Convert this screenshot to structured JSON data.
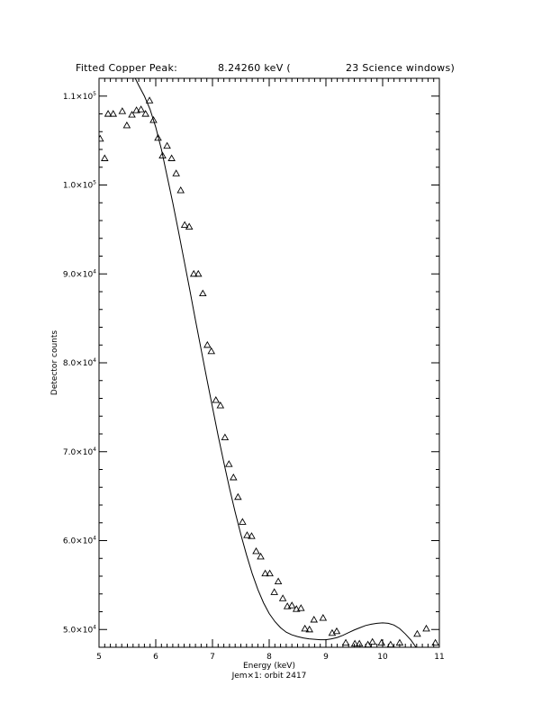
{
  "header": {
    "label": "Fitted Copper Peak:",
    "energy": "8.24260 keV (",
    "windows": "23 Science windows)"
  },
  "chart_data": {
    "type": "scatter",
    "xlabel": "Energy (keV)",
    "ylabel": "Detector counts",
    "subtitle": "Jem×1: orbit 2417",
    "xlim": [
      5,
      11
    ],
    "ylim": [
      48000,
      112000
    ],
    "x_ticks": [
      {
        "value": 5,
        "label": "5"
      },
      {
        "value": 6,
        "label": "6"
      },
      {
        "value": 7,
        "label": "7"
      },
      {
        "value": 8,
        "label": "8"
      },
      {
        "value": 9,
        "label": "9"
      },
      {
        "value": 10,
        "label": "10"
      },
      {
        "value": 11,
        "label": "11"
      }
    ],
    "y_ticks": [
      {
        "value": 50000,
        "mant": "5.0×10",
        "exp": "4"
      },
      {
        "value": 60000,
        "mant": "6.0×10",
        "exp": "4"
      },
      {
        "value": 70000,
        "mant": "7.0×10",
        "exp": "4"
      },
      {
        "value": 80000,
        "mant": "8.0×10",
        "exp": "4"
      },
      {
        "value": 90000,
        "mant": "9.0×10",
        "exp": "4"
      },
      {
        "value": 100000,
        "mant": "1.0×10",
        "exp": "5"
      },
      {
        "value": 110000,
        "mant": "1.1×10",
        "exp": "5"
      }
    ],
    "series": [
      {
        "marker": "triangle",
        "points": [
          [
            5.02,
            105200
          ],
          [
            5.1,
            103000
          ],
          [
            5.16,
            108000
          ],
          [
            5.25,
            108000
          ],
          [
            5.41,
            108300
          ],
          [
            5.49,
            106700
          ],
          [
            5.58,
            107900
          ],
          [
            5.66,
            108400
          ],
          [
            5.74,
            108500
          ],
          [
            5.82,
            108000
          ],
          [
            5.89,
            109500
          ],
          [
            5.96,
            107300
          ],
          [
            6.04,
            105300
          ],
          [
            6.12,
            103300
          ],
          [
            6.2,
            104400
          ],
          [
            6.28,
            103000
          ],
          [
            6.36,
            101300
          ],
          [
            6.44,
            99400
          ],
          [
            6.51,
            95500
          ],
          [
            6.59,
            95300
          ],
          [
            6.67,
            90000
          ],
          [
            6.75,
            90000
          ],
          [
            6.83,
            87800
          ],
          [
            6.91,
            82000
          ],
          [
            6.98,
            81300
          ],
          [
            7.06,
            75800
          ],
          [
            7.14,
            75200
          ],
          [
            7.22,
            71600
          ],
          [
            7.29,
            68600
          ],
          [
            7.37,
            67100
          ],
          [
            7.45,
            64900
          ],
          [
            7.53,
            62100
          ],
          [
            7.61,
            60600
          ],
          [
            7.69,
            60500
          ],
          [
            7.77,
            58800
          ],
          [
            7.85,
            58200
          ],
          [
            7.93,
            56300
          ],
          [
            8.01,
            56300
          ],
          [
            8.09,
            54200
          ],
          [
            8.16,
            55400
          ],
          [
            8.24,
            53500
          ],
          [
            8.32,
            52600
          ],
          [
            8.4,
            52700
          ],
          [
            8.48,
            52300
          ],
          [
            8.56,
            52400
          ],
          [
            8.63,
            50100
          ],
          [
            8.71,
            50000
          ],
          [
            8.79,
            51100
          ],
          [
            8.95,
            51300
          ],
          [
            9.11,
            49600
          ],
          [
            9.19,
            49800
          ],
          [
            9.35,
            48500
          ],
          [
            9.51,
            48400
          ],
          [
            9.59,
            48400
          ],
          [
            9.74,
            48300
          ],
          [
            9.82,
            48600
          ],
          [
            9.98,
            48500
          ],
          [
            10.14,
            48300
          ],
          [
            10.3,
            48500
          ],
          [
            10.61,
            49500
          ],
          [
            10.77,
            50100
          ],
          [
            10.93,
            48500
          ]
        ]
      },
      {
        "style": "line",
        "points": [
          [
            5.55,
            113000
          ],
          [
            5.6,
            112500
          ],
          [
            5.7,
            111200
          ],
          [
            5.8,
            110000
          ],
          [
            5.9,
            108500
          ],
          [
            6.0,
            106500
          ],
          [
            6.1,
            104000
          ],
          [
            6.2,
            101000
          ],
          [
            6.3,
            98000
          ],
          [
            6.4,
            94800
          ],
          [
            6.5,
            91500
          ],
          [
            6.6,
            88200
          ],
          [
            6.7,
            84800
          ],
          [
            6.8,
            81500
          ],
          [
            6.9,
            78200
          ],
          [
            7.0,
            75000
          ],
          [
            7.1,
            71800
          ],
          [
            7.2,
            68800
          ],
          [
            7.3,
            65900
          ],
          [
            7.4,
            63200
          ],
          [
            7.5,
            60700
          ],
          [
            7.6,
            58400
          ],
          [
            7.7,
            56300
          ],
          [
            7.8,
            54500
          ],
          [
            7.9,
            53000
          ],
          [
            8.0,
            51800
          ],
          [
            8.1,
            50900
          ],
          [
            8.2,
            50200
          ],
          [
            8.3,
            49700
          ],
          [
            8.4,
            49400
          ],
          [
            8.5,
            49200
          ],
          [
            8.6,
            49050
          ],
          [
            8.7,
            48950
          ],
          [
            8.8,
            48900
          ],
          [
            8.9,
            48850
          ],
          [
            9.0,
            48850
          ],
          [
            9.1,
            48950
          ],
          [
            9.2,
            49100
          ],
          [
            9.3,
            49350
          ],
          [
            9.4,
            49650
          ],
          [
            9.5,
            49950
          ],
          [
            9.6,
            50200
          ],
          [
            9.7,
            50450
          ],
          [
            9.8,
            50600
          ],
          [
            9.9,
            50700
          ],
          [
            10.0,
            50750
          ],
          [
            10.1,
            50700
          ],
          [
            10.2,
            50500
          ],
          [
            10.3,
            50100
          ],
          [
            10.4,
            49500
          ],
          [
            10.5,
            48800
          ],
          [
            10.6,
            47900
          ],
          [
            10.7,
            46800
          ]
        ]
      }
    ]
  }
}
